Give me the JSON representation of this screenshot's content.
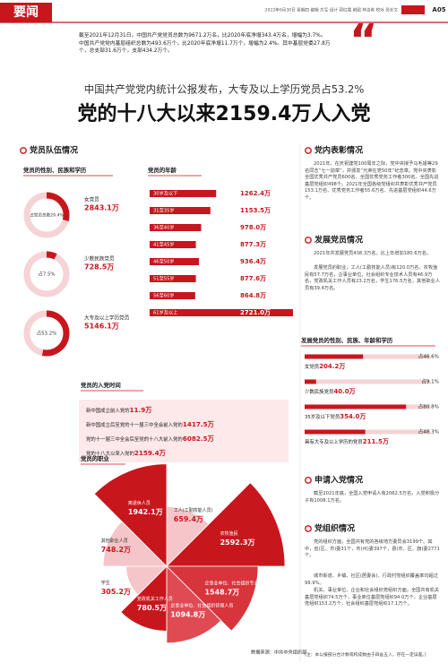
{
  "header": {
    "section": "要闻",
    "dateline": "2022年6月30日 星期四 编辑 方军 设计 郭红霞 制图 林汝希 校对 吴长文",
    "page": "A05"
  },
  "intro": [
    "截至2021年12月31日，中国共产党党员总数为9671.2万名，比2020年底净增343.4万名，增幅为3.7%。",
    "中国共产党党内基层组织总数为493.6万个，比2020年底净增11.7万个，增幅为2.4%。其中基层党委27.8万个，总支部31.6万个，支部434.2万个。"
  ],
  "headline": {
    "subtitle": "中国共产党党内统计公报发布，大专及以上学历党员占53.2%",
    "title": "党的十八大以来2159.4万人入党"
  },
  "team": {
    "title": "党员队伍情况",
    "composition": {
      "title": "党员的性别、民族和学历",
      "items": [
        {
          "label": "女党员",
          "value_label": "2843.1万",
          "share": 29.4,
          "share_label": "占党员总数29.4%"
        },
        {
          "label": "少数民族党员",
          "value_label": "728.5万",
          "share": 7.5,
          "share_label": "占7.5%"
        },
        {
          "label": "大专及以上学历党员",
          "value_label": "5146.1万",
          "share": 53.2,
          "share_label": "占53.2%"
        }
      ]
    },
    "ages": {
      "title": "党员的年龄",
      "items": [
        {
          "label": "30岁及以下",
          "value": 1262.4,
          "value_label": "1262.4万"
        },
        {
          "label": "31至35岁",
          "value": 1153.5,
          "value_label": "1153.5万"
        },
        {
          "label": "36至40岁",
          "value": 978.0,
          "value_label": "978.0万"
        },
        {
          "label": "41至45岁",
          "value": 877.3,
          "value_label": "877.3万"
        },
        {
          "label": "46至50岁",
          "value": 936.4,
          "value_label": "936.4万"
        },
        {
          "label": "51至55岁",
          "value": 877.6,
          "value_label": "877.6万"
        },
        {
          "label": "56至60岁",
          "value": 864.8,
          "value_label": "864.8万"
        },
        {
          "label": "61岁及以上",
          "value": 2721.0,
          "value_label": "2721.0万"
        }
      ]
    },
    "joining": {
      "title": "党员的入党时间",
      "items": [
        {
          "label": "新中国成立前入党的",
          "value_label": "11.9万"
        },
        {
          "label": "新中国成立后至党的十一届三中全会前入党的",
          "value_label": "1417.5万"
        },
        {
          "label": "党的十一届三中全会后至党的十八大前入党的",
          "value_label": "6082.5万"
        },
        {
          "label": "党的十八大以来入党的",
          "value_label": "2159.4万"
        }
      ]
    },
    "occupations": {
      "title": "党员的职业",
      "source": "数据来源：中共中央组织部",
      "items": [
        {
          "label": "工人(工勤技能人员)",
          "value": 659.4,
          "value_label": "659.4万"
        },
        {
          "label": "农牧渔民",
          "value": 2592.3,
          "value_label": "2592.3万"
        },
        {
          "label": "企事业单位、社会组织专业技术人员",
          "value": 1548.7,
          "value_label": "1548.7万"
        },
        {
          "label": "企事业单位、社会组织管理人员",
          "value": 1094.8,
          "value_label": "1094.8万"
        },
        {
          "label": "党政机关工作人员",
          "value": 780.5,
          "value_label": "780.5万"
        },
        {
          "label": "学生",
          "value": 305.2,
          "value_label": "305.2万"
        },
        {
          "label": "其他职业人员",
          "value": 748.2,
          "value_label": "748.2万"
        },
        {
          "label": "离退休人员",
          "value": 1942.1,
          "value_label": "1942.1万"
        }
      ]
    }
  },
  "awards": {
    "title": "党内表彰情况",
    "paragraphs": [
      "2021年，在庆祝建党100周年之际，党中央授予马毛姐等29名同志“七一勋章”，并颁发“光荣在党50年”纪念章。党中央表彰全国优秀共产党员600名、全国优秀党务工作者300名、全国先进基层党组织498个。2021年全国各级党组织共表彰优秀共产党员153.1万名、优秀党务工作者55.6万名、先进基层党组织44.6万个。"
    ]
  },
  "development": {
    "title": "发展党员情况",
    "paragraphs": [
      "2021年共发展党员438.3万名，比上年增加180.6万名。",
      "发展党员的职业，工人(工勤技能人员)有120.0万名，农牧渔民有57.7万名，企事业单位、社会组织专业技术人员有46.9万名，党政机关工作人员有23.2万名，学生176.5万名，其他职业人员有39.4万名。"
    ],
    "chart": {
      "title": "发展党员的性别、民族、年龄和学历",
      "items": [
        {
          "label": "女党员",
          "value_label": "204.2万",
          "share": 46.6,
          "share_label": "占46.6%"
        },
        {
          "label": "少数民族党员",
          "value_label": "40.0万",
          "share": 9.1,
          "share_label": "占9.1%"
        },
        {
          "label": "35岁及以下党员",
          "value_label": "354.0万",
          "share": 80.8,
          "share_label": "占80.8%"
        },
        {
          "label": "具有大专及以上学历的党员",
          "value_label": "211.5万",
          "share": 48.3,
          "share_label": "占48.3%"
        }
      ]
    }
  },
  "applications": {
    "title": "申请入党情况",
    "paragraphs": [
      "截至2021年底，全国入党申请人有2062.5万名，入党积极分子有1008.1万名。"
    ]
  },
  "organizations": {
    "title": "党组织情况",
    "paragraphs": [
      "党的组织方面，全国共有党的各级地方委员会3199个。其中，省(区、市)委31个，市(州)委397个，县(市、区、旗)委2771个。",
      "城市街道、乡镇、社区(居委会)、行政村党组织覆盖率均超过99.9%。",
      "机关、事业单位、企业和社会组织党组织方面，全国共有机关基层党组织74.5万个，事业单位基层党组织94.0万个，企业基层党组织153.2万个，社会组织基层党组织17.1万个。"
    ]
  },
  "footnote": "(注：本公报部分合计数或构成数由于四舍五入，存在一定误差。)"
}
